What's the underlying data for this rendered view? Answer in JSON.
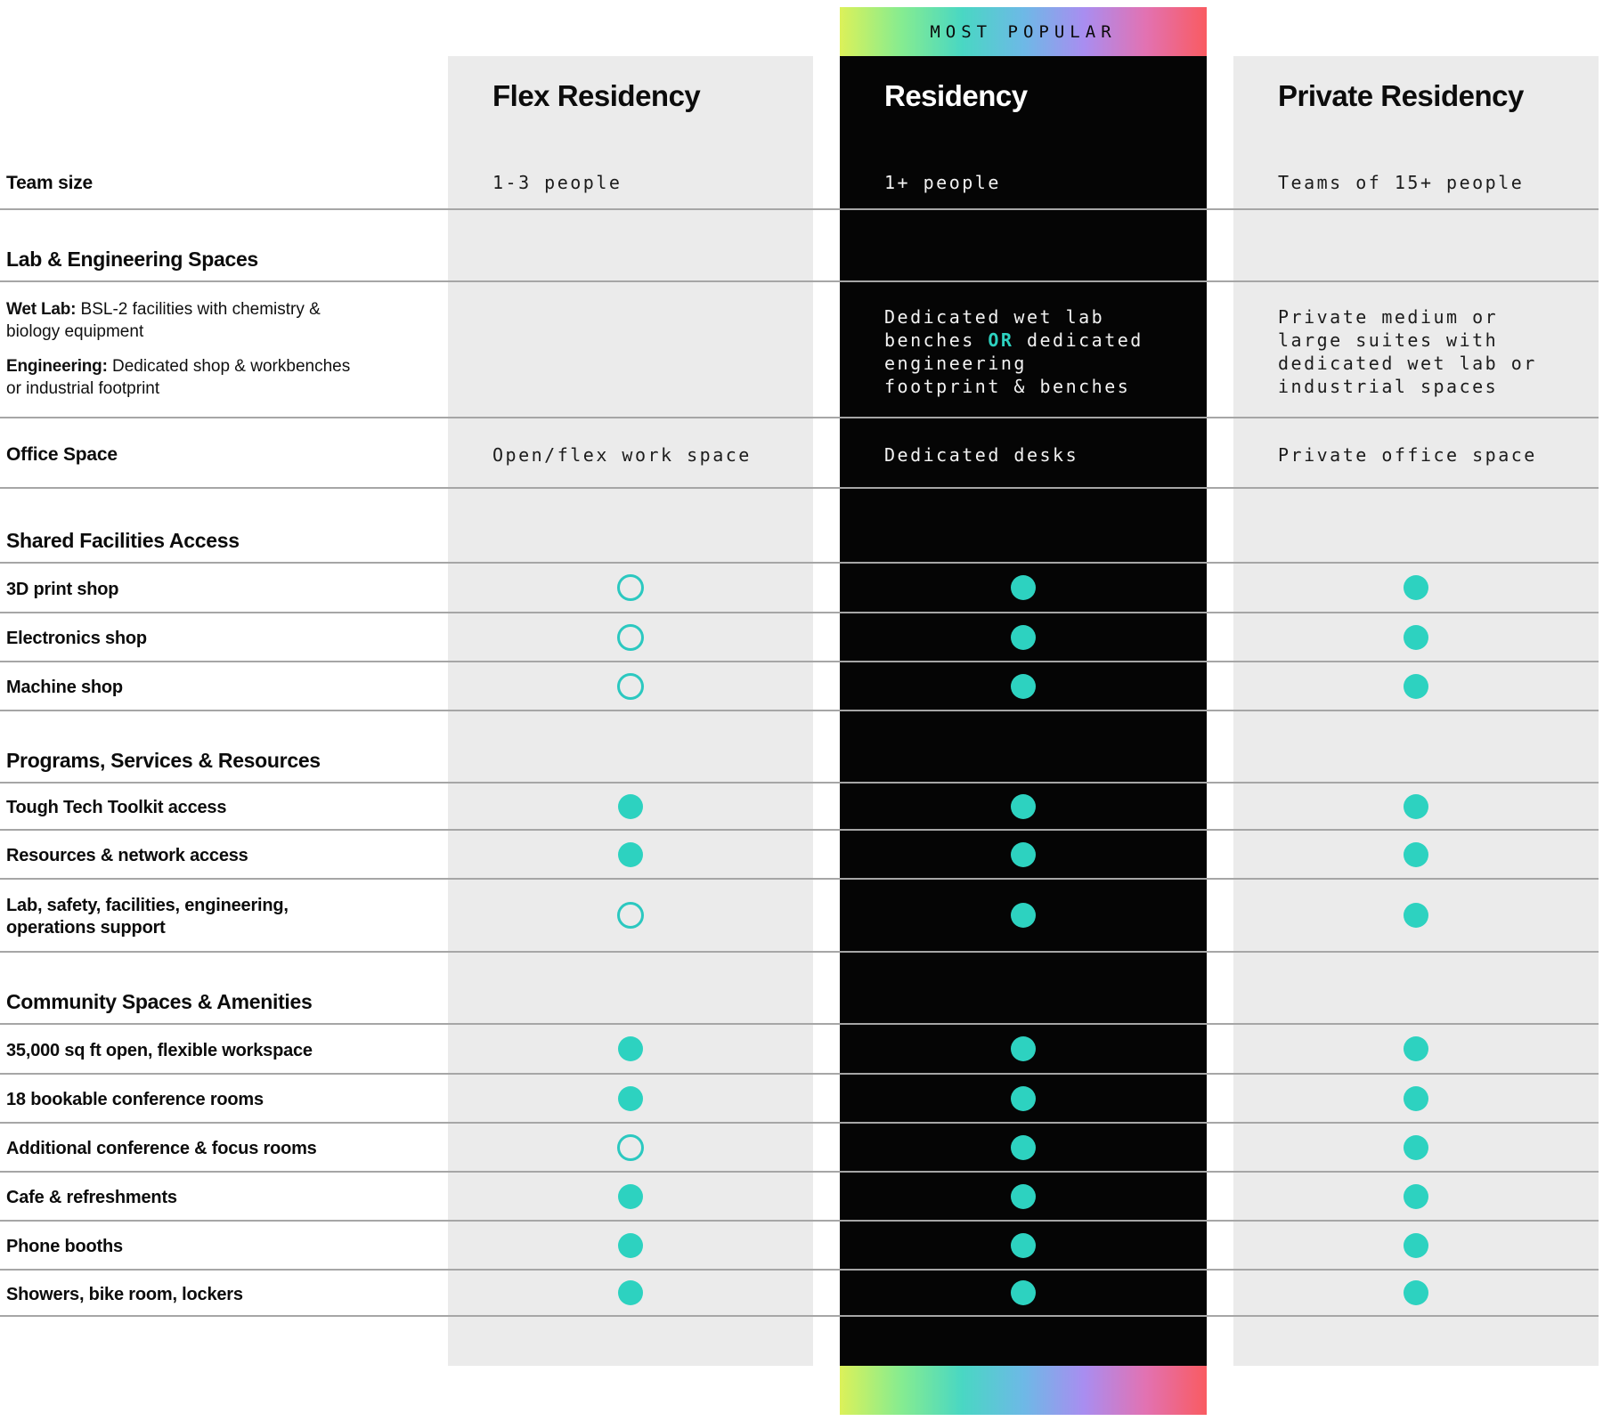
{
  "banner": {
    "label": "MOST POPULAR"
  },
  "theme": {
    "accent": "#2dd2c0",
    "accent_outline": "#2bc8c0",
    "light_column_bg": "#ebebeb",
    "dark_column_bg": "#050505",
    "divider": "#a6a6a6",
    "rainbow_stops": [
      "#dcf159",
      "#86ec90",
      "#49d7c3",
      "#6db9e6",
      "#a98df0",
      "#e272b2",
      "#f95b61"
    ]
  },
  "plans": [
    {
      "name": "Flex Residency",
      "team_size": "1-3 people",
      "theme": "light"
    },
    {
      "name": "Residency",
      "team_size": "1+ people",
      "theme": "dark",
      "badge": "MOST POPULAR"
    },
    {
      "name": "Private Residency",
      "team_size": "Teams of 15+ people",
      "theme": "light"
    }
  ],
  "rows": [
    {
      "type": "header",
      "label": "Team size"
    },
    {
      "type": "section",
      "label": "Lab & Engineering Spaces"
    },
    {
      "type": "text",
      "label_runs": [
        {
          "bold": "Wet Lab:",
          "text": " BSL-2 facilities with chemistry & biology equipment"
        },
        {
          "bold": "Engineering:",
          "text": " Dedicated shop & workbenches or industrial footprint"
        }
      ],
      "cells": [
        null,
        {
          "pre": "Dedicated wet lab benches ",
          "hl": "OR",
          "post": " dedicated engineering footprint & benches"
        },
        {
          "text": "Private medium or large suites with dedicated wet lab or industrial spaces"
        }
      ]
    },
    {
      "type": "text",
      "label": "Office Space",
      "valign": "center",
      "cells": [
        {
          "text": "Open/flex work space"
        },
        {
          "text": "Dedicated desks"
        },
        {
          "text": "Private office space"
        }
      ]
    },
    {
      "type": "section",
      "label": "Shared Facilities Access"
    },
    {
      "type": "dots",
      "label": "3D print shop",
      "dots": [
        "open",
        "filled",
        "filled"
      ]
    },
    {
      "type": "dots",
      "label": "Electronics shop",
      "dots": [
        "open",
        "filled",
        "filled"
      ]
    },
    {
      "type": "dots",
      "label": "Machine shop",
      "dots": [
        "open",
        "filled",
        "filled"
      ]
    },
    {
      "type": "section",
      "label": "Programs, Services & Resources"
    },
    {
      "type": "dots",
      "label": "Tough Tech Toolkit access",
      "dots": [
        "filled",
        "filled",
        "filled"
      ]
    },
    {
      "type": "dots",
      "label": "Resources & network access",
      "dots": [
        "filled",
        "filled",
        "filled"
      ]
    },
    {
      "type": "dots",
      "label": "Lab, safety, facilities, engineering, operations support",
      "dots": [
        "open",
        "filled",
        "filled"
      ]
    },
    {
      "type": "section",
      "label": "Community Spaces & Amenities"
    },
    {
      "type": "dots",
      "label": "35,000 sq ft open, flexible workspace",
      "dots": [
        "filled",
        "filled",
        "filled"
      ]
    },
    {
      "type": "dots",
      "label": "18 bookable conference rooms",
      "dots": [
        "filled",
        "filled",
        "filled"
      ]
    },
    {
      "type": "dots",
      "label": "Additional conference & focus rooms",
      "dots": [
        "open",
        "filled",
        "filled"
      ]
    },
    {
      "type": "dots",
      "label": "Cafe & refreshments",
      "dots": [
        "filled",
        "filled",
        "filled"
      ]
    },
    {
      "type": "dots",
      "label": "Phone booths",
      "dots": [
        "filled",
        "filled",
        "filled"
      ]
    },
    {
      "type": "dots",
      "label": "Showers, bike room, lockers",
      "dots": [
        "filled",
        "filled",
        "filled"
      ]
    },
    {
      "type": "pad"
    }
  ]
}
